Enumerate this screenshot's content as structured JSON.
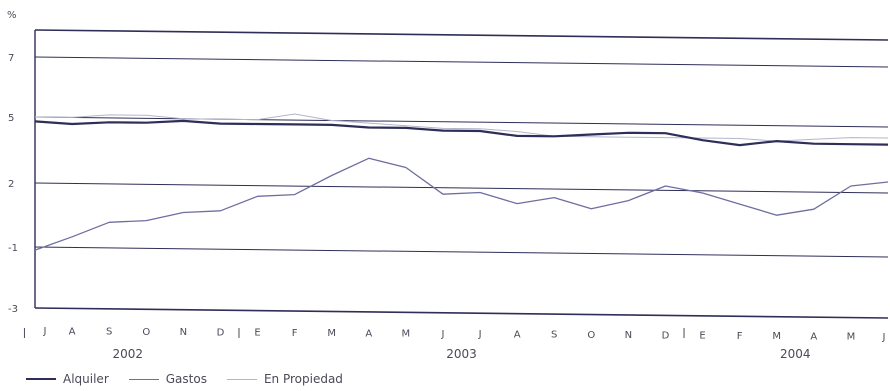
{
  "chart_data": {
    "type": "line",
    "ylabel": "%",
    "ylim": [
      -3,
      8
    ],
    "yticks": [
      7,
      5,
      2,
      -1,
      -3
    ],
    "months": [
      "J",
      "A",
      "S",
      "O",
      "N",
      "D",
      "E",
      "F",
      "M",
      "A",
      "M",
      "J",
      "J",
      "A",
      "S",
      "O",
      "N",
      "D",
      "E",
      "F",
      "M",
      "A",
      "M",
      "J"
    ],
    "years": [
      {
        "label": "2002",
        "start": 0,
        "end": 5
      },
      {
        "label": "2003",
        "start": 6,
        "end": 17
      },
      {
        "label": "2004",
        "start": 18,
        "end": 23
      }
    ],
    "series": [
      {
        "name": "Alquiler",
        "color": "#2e2e58",
        "width": 2.2,
        "values": [
          4.8,
          4.7,
          4.8,
          4.8,
          4.9,
          4.8,
          4.8,
          4.8,
          4.8,
          4.7,
          4.7,
          4.6,
          4.6,
          4.4,
          4.4,
          4.5,
          4.6,
          4.6,
          4.3,
          4.1,
          4.3,
          4.2,
          4.2,
          4.2
        ]
      },
      {
        "name": "Gastos",
        "color": "#6e6ea0",
        "width": 1.3,
        "values": [
          -1.1,
          -0.5,
          0.2,
          0.3,
          0.7,
          0.8,
          1.5,
          1.6,
          2.5,
          3.3,
          2.9,
          1.7,
          1.8,
          1.3,
          1.6,
          1.1,
          1.5,
          2.2,
          1.9,
          1.4,
          0.9,
          1.2,
          2.3,
          2.5
        ]
      },
      {
        "name": "En Propiedad",
        "color": "#b4b4cc",
        "width": 1.0,
        "values": [
          5.0,
          5.0,
          5.1,
          5.1,
          5.0,
          5.0,
          5.0,
          5.2,
          5.0,
          4.9,
          4.8,
          4.7,
          4.7,
          4.6,
          4.4,
          4.4,
          4.4,
          4.4,
          4.4,
          4.4,
          4.3,
          4.4,
          4.5,
          4.5
        ]
      }
    ]
  }
}
